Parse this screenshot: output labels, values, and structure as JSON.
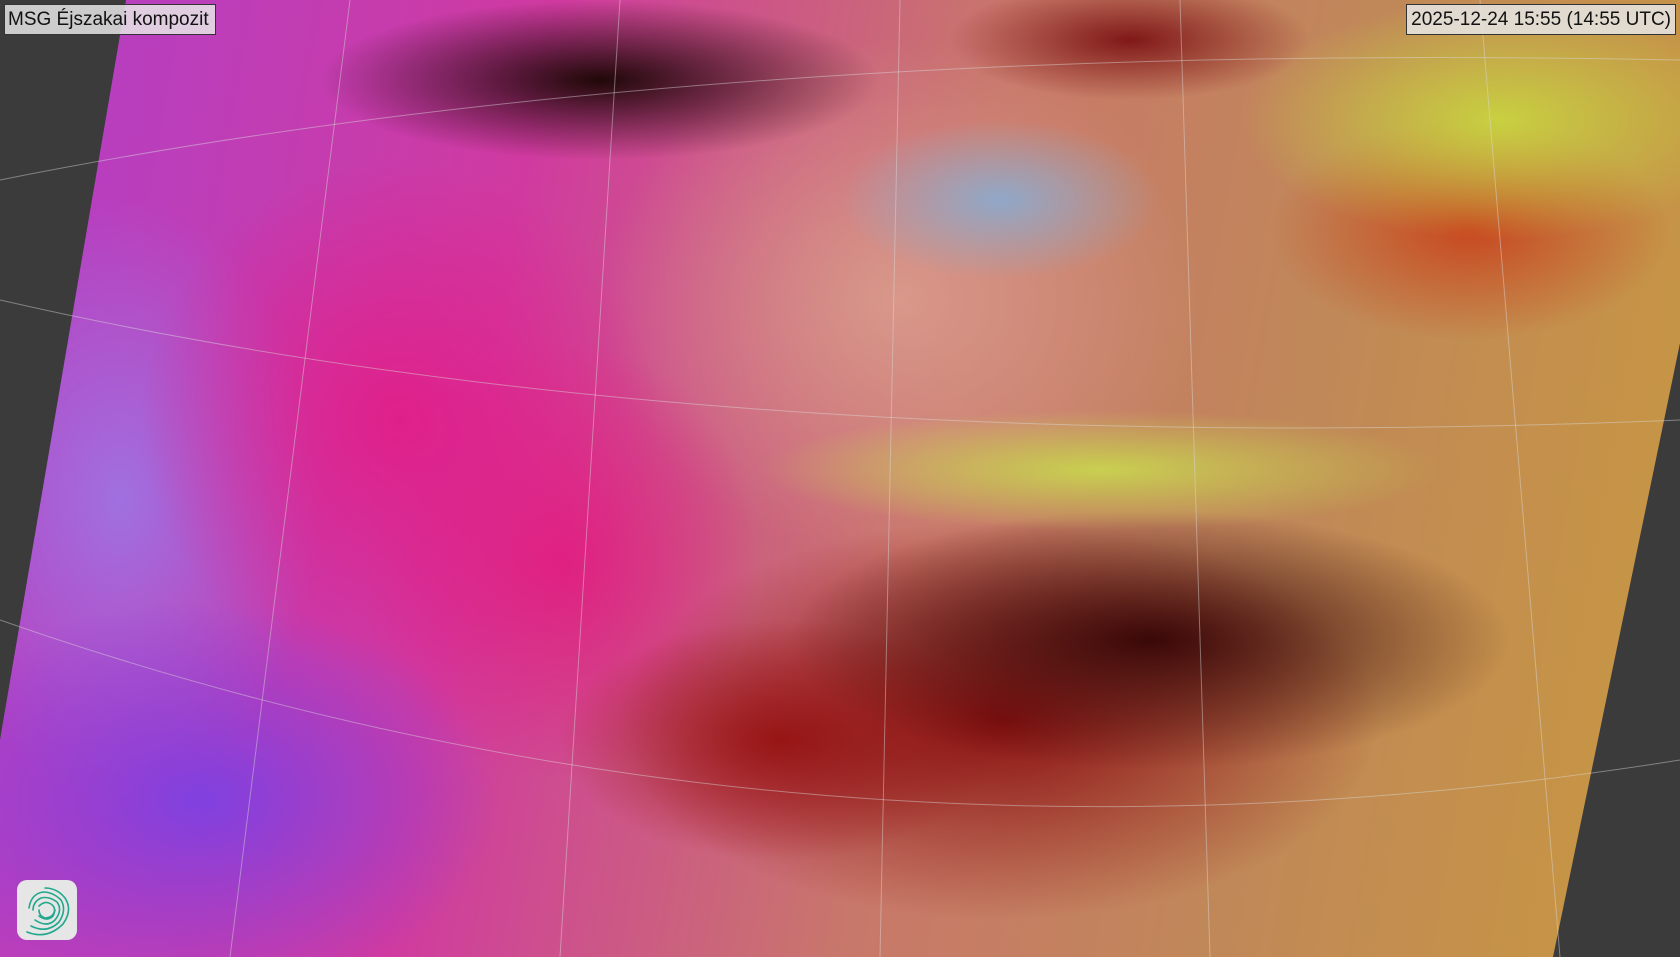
{
  "map": {
    "title": "MSG Éjszakai kompozit",
    "timestamp": "2025-12-24 15:55 (14:55 UTC)",
    "background_color": "#3b3b3b",
    "logo_icon": "spiral-logo-icon",
    "logo_color": "#20a890"
  }
}
